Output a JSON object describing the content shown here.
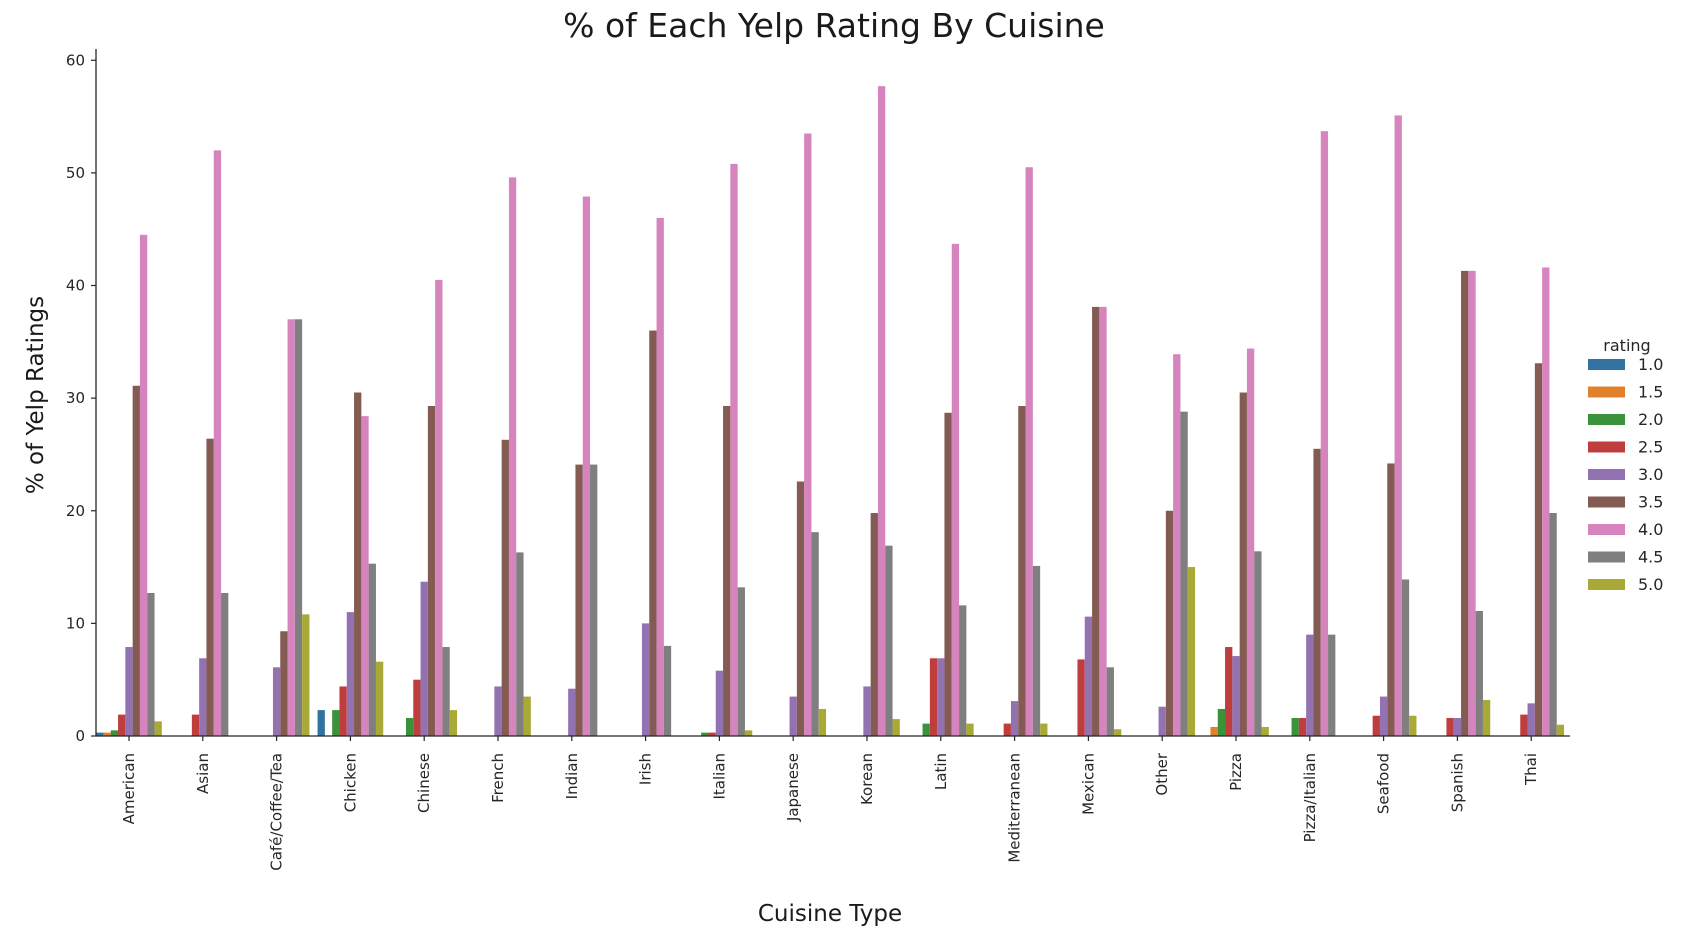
{
  "chart_data": {
    "type": "bar",
    "title": "% of Each Yelp Rating By Cuisine",
    "xlabel": "Cuisine Type",
    "ylabel": "% of Yelp Ratings",
    "ylim": [
      0,
      61
    ],
    "yticks": [
      0,
      10,
      20,
      30,
      40,
      50,
      60
    ],
    "grid": false,
    "legend": {
      "title": "rating",
      "placement": "right"
    },
    "categories": [
      "American",
      "Asian",
      "Café/Coffee/Tea",
      "Chicken",
      "Chinese",
      "French",
      "Indian",
      "Irish",
      "Italian",
      "Japanese",
      "Korean",
      "Latin",
      "Mediterranean",
      "Mexican",
      "Other",
      "Pizza",
      "Pizza/Italian",
      "Seafood",
      "Spanish",
      "Thai"
    ],
    "series": [
      {
        "name": "1.0",
        "color": "#3274a1",
        "values": [
          0.3,
          0,
          0,
          2.3,
          0,
          0,
          0,
          0,
          0,
          0,
          0,
          0,
          0,
          0,
          0,
          0,
          0,
          0,
          0,
          0
        ]
      },
      {
        "name": "1.5",
        "color": "#e1812c",
        "values": [
          0.3,
          0,
          0,
          0,
          0,
          0,
          0,
          0,
          0,
          0,
          0,
          0,
          0,
          0,
          0,
          0.8,
          0,
          0,
          0,
          0
        ]
      },
      {
        "name": "2.0",
        "color": "#3a923a",
        "values": [
          0.5,
          0,
          0,
          2.3,
          1.6,
          0,
          0,
          0,
          0.3,
          0,
          0,
          1.1,
          0,
          0,
          0,
          2.4,
          1.6,
          0,
          0,
          0
        ]
      },
      {
        "name": "2.5",
        "color": "#c03d3e",
        "values": [
          1.9,
          1.9,
          0,
          4.4,
          5.0,
          0,
          0,
          0,
          0.3,
          0,
          0,
          6.9,
          1.1,
          6.8,
          0,
          7.9,
          1.6,
          1.8,
          1.6,
          1.9
        ]
      },
      {
        "name": "3.0",
        "color": "#9372b2",
        "values": [
          7.9,
          6.9,
          6.1,
          11.0,
          13.7,
          4.4,
          4.2,
          10.0,
          5.8,
          3.5,
          4.4,
          6.9,
          3.1,
          10.6,
          2.6,
          7.1,
          9.0,
          3.5,
          1.6,
          2.9
        ]
      },
      {
        "name": "3.5",
        "color": "#845b53",
        "values": [
          31.1,
          26.4,
          9.3,
          30.5,
          29.3,
          26.3,
          24.1,
          36.0,
          29.3,
          22.6,
          19.8,
          28.7,
          29.3,
          38.1,
          20.0,
          30.5,
          25.5,
          24.2,
          41.3,
          33.1
        ]
      },
      {
        "name": "4.0",
        "color": "#d684bd",
        "values": [
          44.5,
          52.0,
          37.0,
          28.4,
          40.5,
          49.6,
          47.9,
          46.0,
          50.8,
          53.5,
          57.7,
          43.7,
          50.5,
          38.1,
          33.9,
          34.4,
          53.7,
          55.1,
          41.3,
          41.6
        ]
      },
      {
        "name": "4.5",
        "color": "#7f7f7f",
        "values": [
          12.7,
          12.7,
          37.0,
          15.3,
          7.9,
          16.3,
          24.1,
          8.0,
          13.2,
          18.1,
          16.9,
          11.6,
          15.1,
          6.1,
          28.8,
          16.4,
          9.0,
          13.9,
          11.1,
          19.8
        ]
      },
      {
        "name": "5.0",
        "color": "#a9a938",
        "values": [
          1.3,
          0,
          10.8,
          6.6,
          2.3,
          3.5,
          0,
          0,
          0.5,
          2.4,
          1.5,
          1.1,
          1.1,
          0.6,
          15.0,
          0.8,
          0,
          1.8,
          3.2,
          1.0
        ]
      }
    ]
  }
}
